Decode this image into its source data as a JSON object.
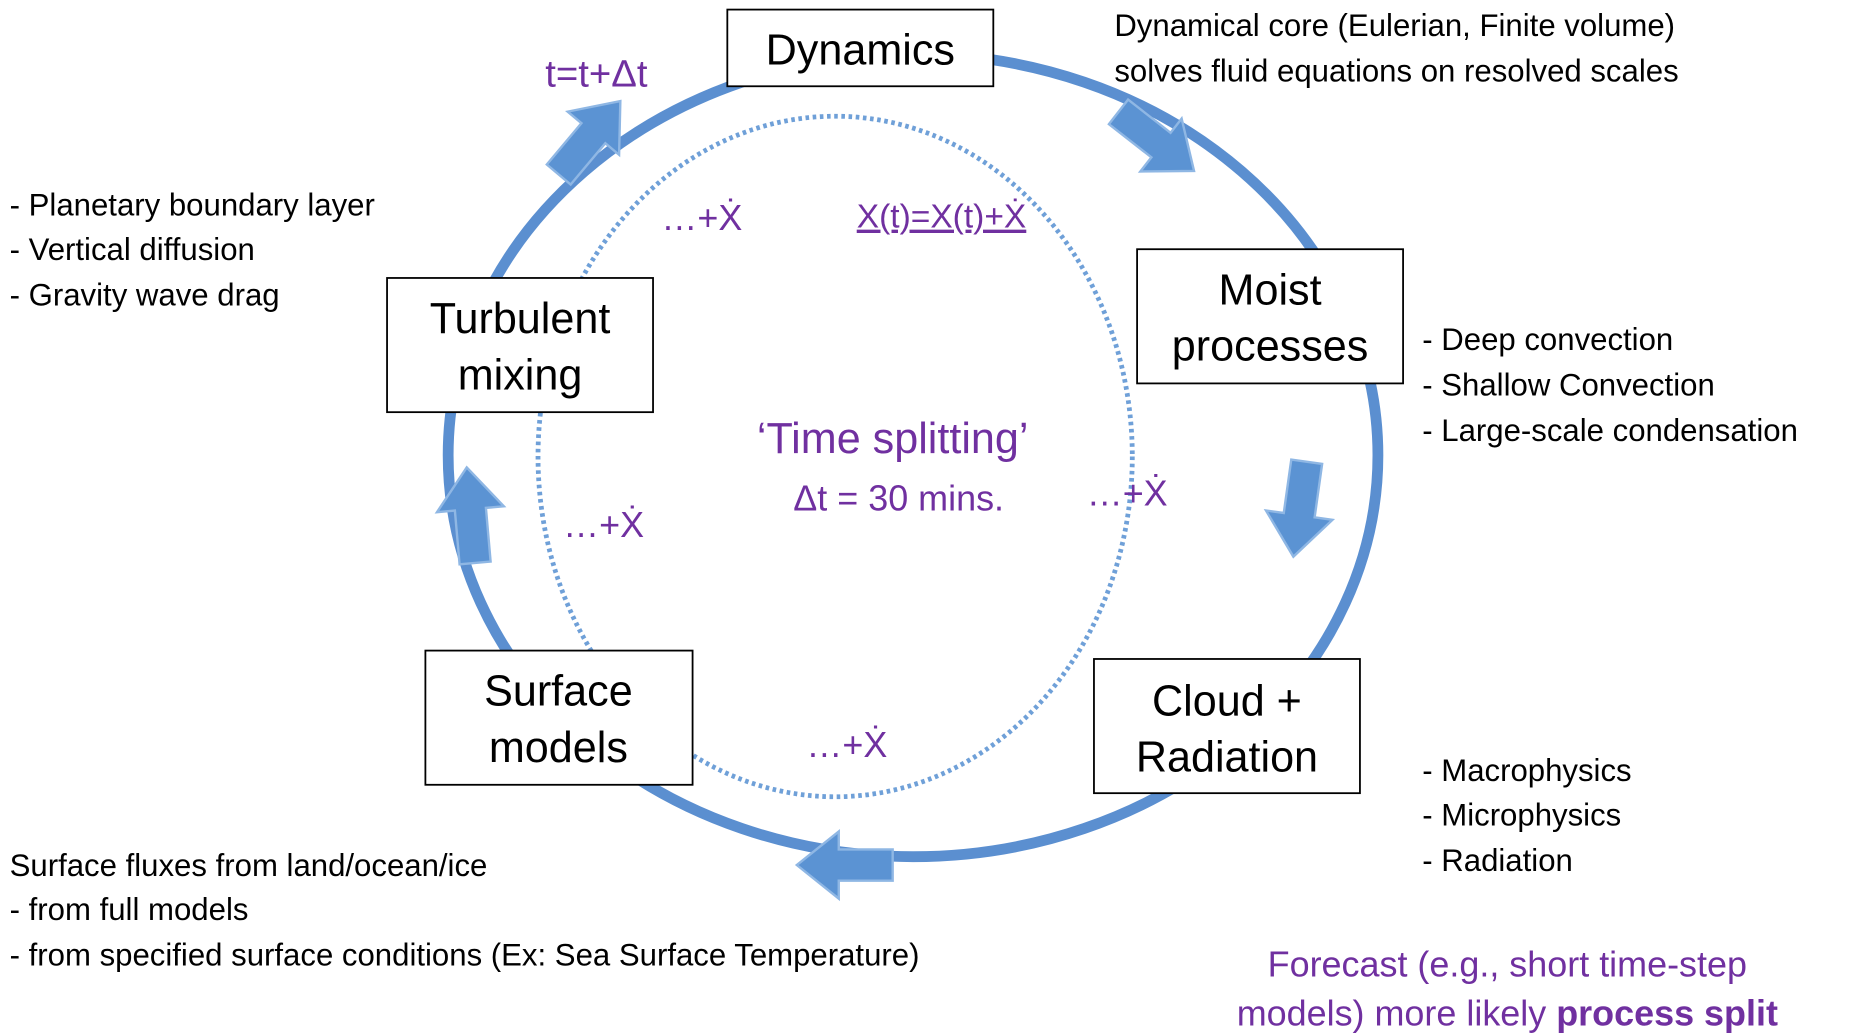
{
  "nodes": [
    {
      "lines": [
        "Dynamics"
      ]
    },
    {
      "lines": [
        "Moist",
        "processes"
      ]
    },
    {
      "lines": [
        "Cloud +",
        "Radiation"
      ]
    },
    {
      "lines": [
        "Surface",
        "models"
      ]
    },
    {
      "lines": [
        "Turbulent",
        "mixing"
      ]
    }
  ],
  "timestep": "t=t+Δt",
  "center": {
    "title": "‘Time splitting’",
    "step": "Δt = 30 mins."
  },
  "increments": [
    "…+Ẋ",
    "…+Ẋ",
    "…+Ẋ",
    "…+Ẋ"
  ],
  "update": "X(t)=X(t)+Ẋ",
  "notes": {
    "dynamics": [
      "Dynamical core (Eulerian, Finite volume)",
      "solves fluid equations on resolved scales"
    ],
    "turbulent": [
      "- Planetary boundary layer",
      "- Vertical diffusion",
      "- Gravity wave drag"
    ],
    "moist": [
      "- Deep convection",
      "- Shallow Convection",
      "- Large-scale condensation"
    ],
    "cloud": [
      "- Macrophysics",
      "- Microphysics",
      "- Radiation"
    ],
    "surface": [
      "Surface fluxes from land/ocean/ice",
      "- from full models",
      "- from specified surface conditions (Ex: Sea Surface Temperature)"
    ]
  },
  "forecast": {
    "line1": "Forecast (e.g., short time-step",
    "line2": "models) more likely ",
    "bold": "process split"
  }
}
